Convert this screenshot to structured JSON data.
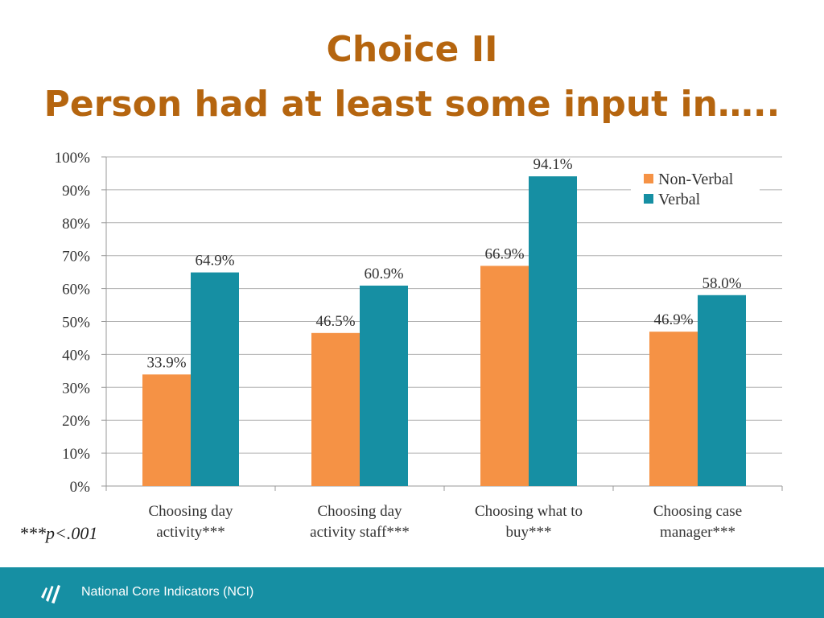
{
  "title": "Choice II",
  "subtitle": "Person had at least some input in…..",
  "footnote": "***p<.001",
  "footer": {
    "text": "National Core Indicators (NCI)"
  },
  "colors": {
    "title": "#b5650f",
    "non_verbal": "#f59245",
    "verbal": "#168fa3",
    "footer_bg": "#168fa3"
  },
  "icons": {
    "footer_logo": "nci-logo-icon"
  },
  "chart_data": {
    "type": "bar",
    "categories": [
      "Choosing day activity***",
      "Choosing day activity staff***",
      "Choosing what to buy***",
      "Choosing case manager***"
    ],
    "series": [
      {
        "name": "Non-Verbal",
        "values": [
          33.9,
          46.5,
          66.9,
          46.9
        ],
        "labels": [
          "33.9%",
          "46.5%",
          "66.9%",
          "46.9%"
        ]
      },
      {
        "name": "Verbal",
        "values": [
          64.9,
          60.9,
          94.1,
          58.0
        ],
        "labels": [
          "64.9%",
          "60.9%",
          "94.1%",
          "58.0%"
        ]
      }
    ],
    "yticks": [
      "0%",
      "10%",
      "20%",
      "30%",
      "40%",
      "50%",
      "60%",
      "70%",
      "80%",
      "90%",
      "100%"
    ],
    "ylim": [
      0,
      100
    ],
    "grid": true,
    "legend": "top-right"
  }
}
